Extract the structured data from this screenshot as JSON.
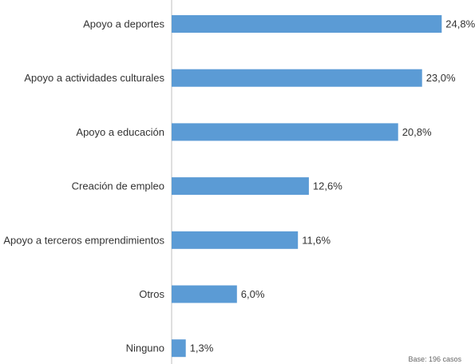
{
  "chart_data": {
    "type": "bar",
    "orientation": "horizontal",
    "categories": [
      "Apoyo a deportes",
      "Apoyo a actividades culturales",
      "Apoyo a educación",
      "Creación de empleo",
      "Apoyo a terceros emprendimientos",
      "Otros",
      "Ninguno"
    ],
    "values": [
      24.8,
      23.0,
      20.8,
      12.6,
      11.6,
      6.0,
      1.3
    ],
    "value_labels": [
      "24,8%",
      "23,0%",
      "20,8%",
      "12,6%",
      "11,6%",
      "6,0%",
      "1,3%"
    ],
    "unit": "%",
    "bar_color": "#5b9bd5",
    "xlim": [
      0,
      25
    ],
    "grid": false,
    "legend": "none",
    "footnote": "Base: 196 casos"
  }
}
